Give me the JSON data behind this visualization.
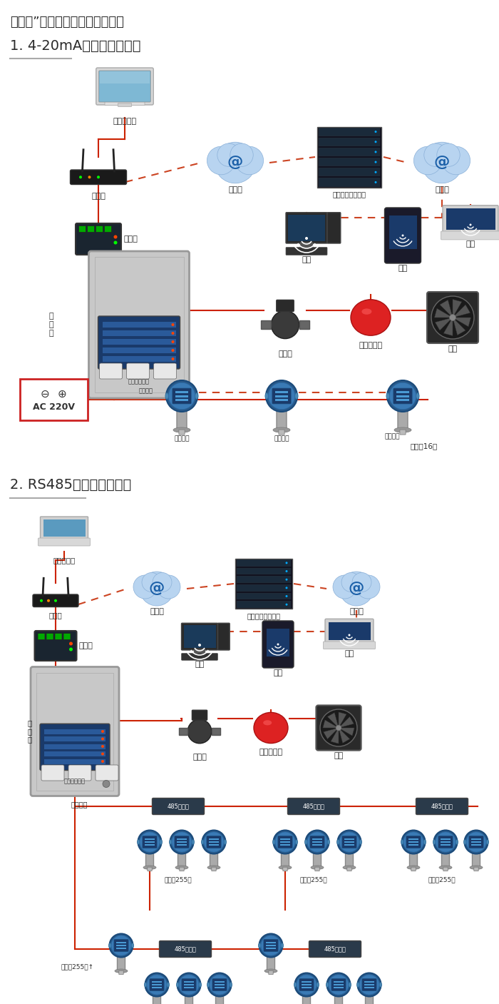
{
  "title1": "机气猫”系列带显示固定式检测仪",
  "section1": "1. 4-20mA信号连接系统图",
  "section2": "2. RS485信号连接系统图",
  "bg_color": "#ffffff",
  "text_color": "#2a2a2a",
  "fig_width": 7.0,
  "fig_height": 14.07,
  "dpi": 100,
  "line_red": "#cc2200",
  "line_dashed": "#cc4422"
}
